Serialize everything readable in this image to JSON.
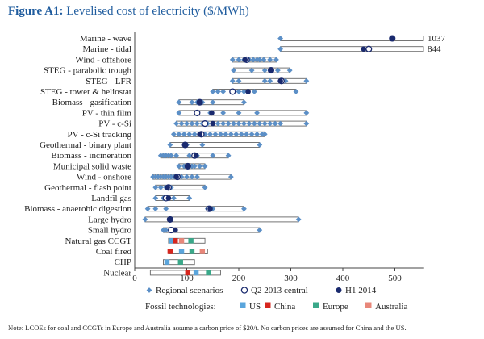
{
  "figure": {
    "number": "Figure A1:",
    "title": "Levelised cost of electricity ($/MWh)"
  },
  "chart_data": {
    "type": "range-bar",
    "xlim": [
      0,
      550
    ],
    "xticks": [
      0,
      100,
      200,
      300,
      400,
      500
    ],
    "colors": {
      "regional": "#5b8fc7",
      "central": "#1a2a6e",
      "US": "#5aa5dc",
      "China": "#d7261e",
      "Europe": "#3aa889",
      "Australia": "#e8877a",
      "bar_fill": "#ffffff",
      "bar_stroke": "#666666"
    },
    "technologies": [
      {
        "name": "Marine - wave",
        "min": 280,
        "max": 555,
        "regional": [
          280
        ],
        "q2": 495,
        "h1": 495,
        "overflow_label": "1037"
      },
      {
        "name": "Marine - tidal",
        "min": 280,
        "max": 555,
        "regional": [
          280
        ],
        "q2": 450,
        "h1": 440,
        "overflow_label": "844"
      },
      {
        "name": "Wind - offshore",
        "min": 188,
        "max": 272,
        "regional": [
          188,
          200,
          210,
          215,
          220,
          228,
          235,
          240,
          248,
          260,
          272
        ],
        "q2": 215,
        "h1": 212
      },
      {
        "name": "STEG - parabolic trough",
        "min": 190,
        "max": 298,
        "regional": [
          190,
          225,
          250,
          262,
          275,
          298
        ],
        "q2": 262,
        "h1": 262
      },
      {
        "name": "STEG - LFR",
        "min": 188,
        "max": 330,
        "regional": [
          188,
          200,
          250,
          260,
          290,
          330
        ],
        "q2": 282,
        "h1": 280
      },
      {
        "name": "STEG - tower & heliostat",
        "min": 150,
        "max": 310,
        "regional": [
          150,
          160,
          170,
          200,
          210,
          230,
          310
        ],
        "q2": 188,
        "h1": 218
      },
      {
        "name": "Biomass - gasification",
        "min": 85,
        "max": 210,
        "regional": [
          85,
          110,
          120,
          130,
          150,
          210
        ],
        "q2": 125,
        "h1": 125
      },
      {
        "name": "PV - thin film",
        "min": 85,
        "max": 330,
        "regional": [
          85,
          120,
          145,
          170,
          200,
          235,
          330
        ],
        "q2": 120,
        "h1": 148
      },
      {
        "name": "PV - c-Si",
        "min": 80,
        "max": 330,
        "regional": [
          80,
          90,
          100,
          110,
          120,
          130,
          140,
          150,
          160,
          170,
          180,
          190,
          200,
          210,
          220,
          230,
          240,
          250,
          260,
          270,
          280,
          330
        ],
        "q2": 135,
        "h1": 150
      },
      {
        "name": "PV - c-Si tracking",
        "min": 75,
        "max": 250,
        "regional": [
          75,
          85,
          95,
          105,
          115,
          125,
          135,
          145,
          155,
          165,
          175,
          185,
          195,
          205,
          215,
          225,
          235,
          245,
          250
        ],
        "q2": 128,
        "h1": 125
      },
      {
        "name": "Geothermal - binary plant",
        "min": 68,
        "max": 240,
        "regional": [
          68,
          100,
          130,
          240
        ],
        "q2": 97,
        "h1": 97
      },
      {
        "name": "Biomass - incineration",
        "min": 50,
        "max": 180,
        "regional": [
          50,
          55,
          60,
          65,
          70,
          80,
          105,
          120,
          150,
          180
        ],
        "q2": 115,
        "h1": 118
      },
      {
        "name": "Municipal solid waste",
        "min": 85,
        "max": 135,
        "regional": [
          85,
          95,
          110,
          115,
          125,
          135
        ],
        "q2": 102,
        "h1": 103
      },
      {
        "name": "Wind - onshore",
        "min": 35,
        "max": 185,
        "regional": [
          35,
          40,
          45,
          50,
          55,
          60,
          65,
          70,
          75,
          80,
          85,
          90,
          100,
          110,
          120,
          185
        ],
        "q2": 82,
        "h1": 80
      },
      {
        "name": "Geothermal - flash point",
        "min": 40,
        "max": 135,
        "regional": [
          40,
          50,
          60,
          70,
          135
        ],
        "q2": 65,
        "h1": 63
      },
      {
        "name": "Landfil gas",
        "min": 40,
        "max": 105,
        "regional": [
          40,
          55,
          65,
          75,
          105
        ],
        "q2": 60,
        "h1": 65
      },
      {
        "name": "Biomass - anaerobic digestion",
        "min": 25,
        "max": 210,
        "regional": [
          25,
          40,
          60,
          140,
          150,
          210
        ],
        "q2": 143,
        "h1": 145
      },
      {
        "name": "Large hydro",
        "min": 20,
        "max": 315,
        "regional": [
          20,
          315
        ],
        "q2": 68,
        "h1": 68
      },
      {
        "name": "Small hydro",
        "min": 55,
        "max": 240,
        "regional": [
          55,
          60,
          240
        ],
        "q2": 70,
        "h1": 78
      }
    ],
    "fossil": [
      {
        "name": "Natural gas CCGT",
        "min": 65,
        "max": 135,
        "markers": [
          {
            "tech": "US",
            "value": 70
          },
          {
            "tech": "China",
            "value": 78
          },
          {
            "tech": "Europe",
            "value": 108
          },
          {
            "tech": "Australia",
            "value": 90
          }
        ]
      },
      {
        "name": "Coal fired",
        "min": 65,
        "max": 140,
        "markers": [
          {
            "tech": "China",
            "value": 68
          },
          {
            "tech": "US",
            "value": 90
          },
          {
            "tech": "Europe",
            "value": 110
          },
          {
            "tech": "Australia",
            "value": 130
          }
        ]
      },
      {
        "name": "CHP",
        "min": 55,
        "max": 115,
        "markers": [
          {
            "tech": "US",
            "value": 62
          },
          {
            "tech": "Europe",
            "value": 88
          }
        ]
      },
      {
        "name": "Nuclear",
        "min": 30,
        "max": 165,
        "markers": [
          {
            "tech": "China",
            "value": 102
          },
          {
            "tech": "US",
            "value": 118
          },
          {
            "tech": "Europe",
            "value": 142
          }
        ]
      }
    ],
    "legend": {
      "regional": "Regional scenarios",
      "q2": "Q2 2013 central",
      "h1": "H1 2014",
      "fossil_title": "Fossil technologies:",
      "fossil_items": [
        "US",
        "China",
        "Europe",
        "Australia"
      ]
    }
  },
  "footnote": "Note: LCOEs for coal and CCGTs in Europe and Australia assume a carbon price of $20/t. No carbon prices are assumed for China and the US."
}
